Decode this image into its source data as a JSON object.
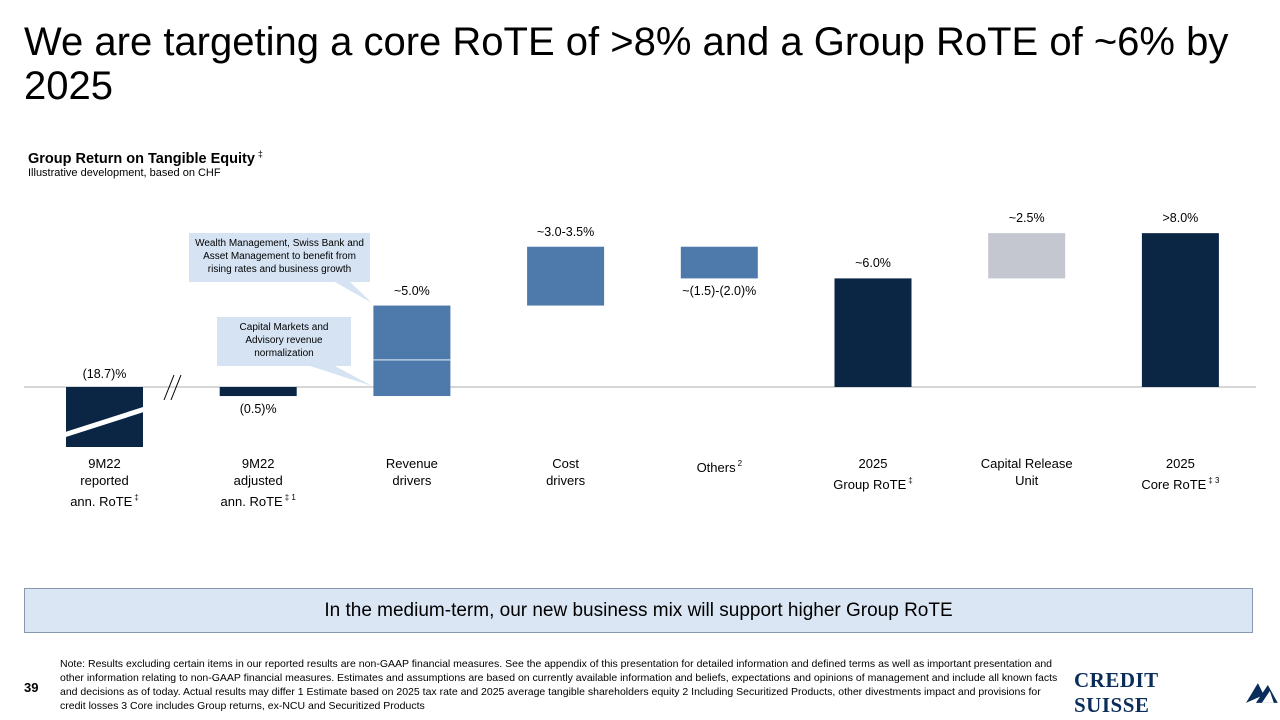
{
  "title": "We are targeting a core RoTE of >8% and a Group RoTE of ~6% by 2025",
  "subtitle": "Group Return on Tangible Equity",
  "subtitle_marker": "‡",
  "subnote": "Illustrative development, based on CHF",
  "chart_data": {
    "type": "waterfall",
    "title": "Group Return on Tangible Equity",
    "units": "%",
    "categories": [
      {
        "label": "9M22\nreported\nann. RoTE",
        "sup": "‡"
      },
      {
        "label": "9M22\nadjusted\nann. RoTE",
        "sup": "‡ 1"
      },
      {
        "label": "Revenue\ndrivers",
        "sup": ""
      },
      {
        "label": "Cost\ndrivers",
        "sup": ""
      },
      {
        "label": "Others",
        "sup": "2"
      },
      {
        "label": "2025\nGroup RoTE",
        "sup": "‡"
      },
      {
        "label": "Capital Release\nUnit",
        "sup": ""
      },
      {
        "label": "2025\nCore RoTE",
        "sup": "‡ 3"
      }
    ],
    "bars": [
      {
        "label": "(18.7)%",
        "base": 0,
        "value": -18.7,
        "kind": "total-broken",
        "color": "#0b2545"
      },
      {
        "label": "(0.5)%",
        "base": 0,
        "value": -0.5,
        "kind": "total",
        "color": "#0b2545"
      },
      {
        "label": "~5.0%",
        "base": -0.5,
        "value": 5.0,
        "kind": "delta",
        "color": "#4e79ab"
      },
      {
        "label": "~3.0-3.5%",
        "base": 4.5,
        "value": 3.25,
        "kind": "delta",
        "color": "#4e79ab"
      },
      {
        "label": "~(1.5)-(2.0)%",
        "base": 7.75,
        "value": -1.75,
        "kind": "delta",
        "color": "#4e79ab"
      },
      {
        "label": "~6.0%",
        "base": 0,
        "value": 6.0,
        "kind": "total",
        "color": "#0b2545"
      },
      {
        "label": "~2.5%",
        "base": 6.0,
        "value": 2.5,
        "kind": "delta",
        "color": "#c4c6d0"
      },
      {
        "label": ">8.0%",
        "base": 0,
        "value": 8.5,
        "kind": "total",
        "color": "#0b2545"
      }
    ],
    "revenue_split": [
      2.0,
      3.0
    ],
    "callouts": [
      "Wealth Management, Swiss Bank and Asset Management to benefit from rising rates and business growth",
      "Capital Markets and Advisory revenue normalization"
    ]
  },
  "banner": "In the medium-term, our new business mix will support higher Group RoTE",
  "page_number": "39",
  "note": "Note: Results excluding certain items in our reported results are non-GAAP financial measures. See the appendix of this presentation for detailed information and defined terms as well as important presentation and other information relating to non-GAAP financial measures. Estimates and assumptions are based on currently available information and beliefs, expectations and opinions of management and include all known facts and decisions as of today. Actual results may differ      1 Estimate based on 2025 tax rate and 2025 average tangible shareholders equity      2 Including Securitized Products, other divestments impact and provisions for credit losses      3 Core includes Group returns, ex-NCU and Securitized Products",
  "logo": "CREDIT SUISSE"
}
